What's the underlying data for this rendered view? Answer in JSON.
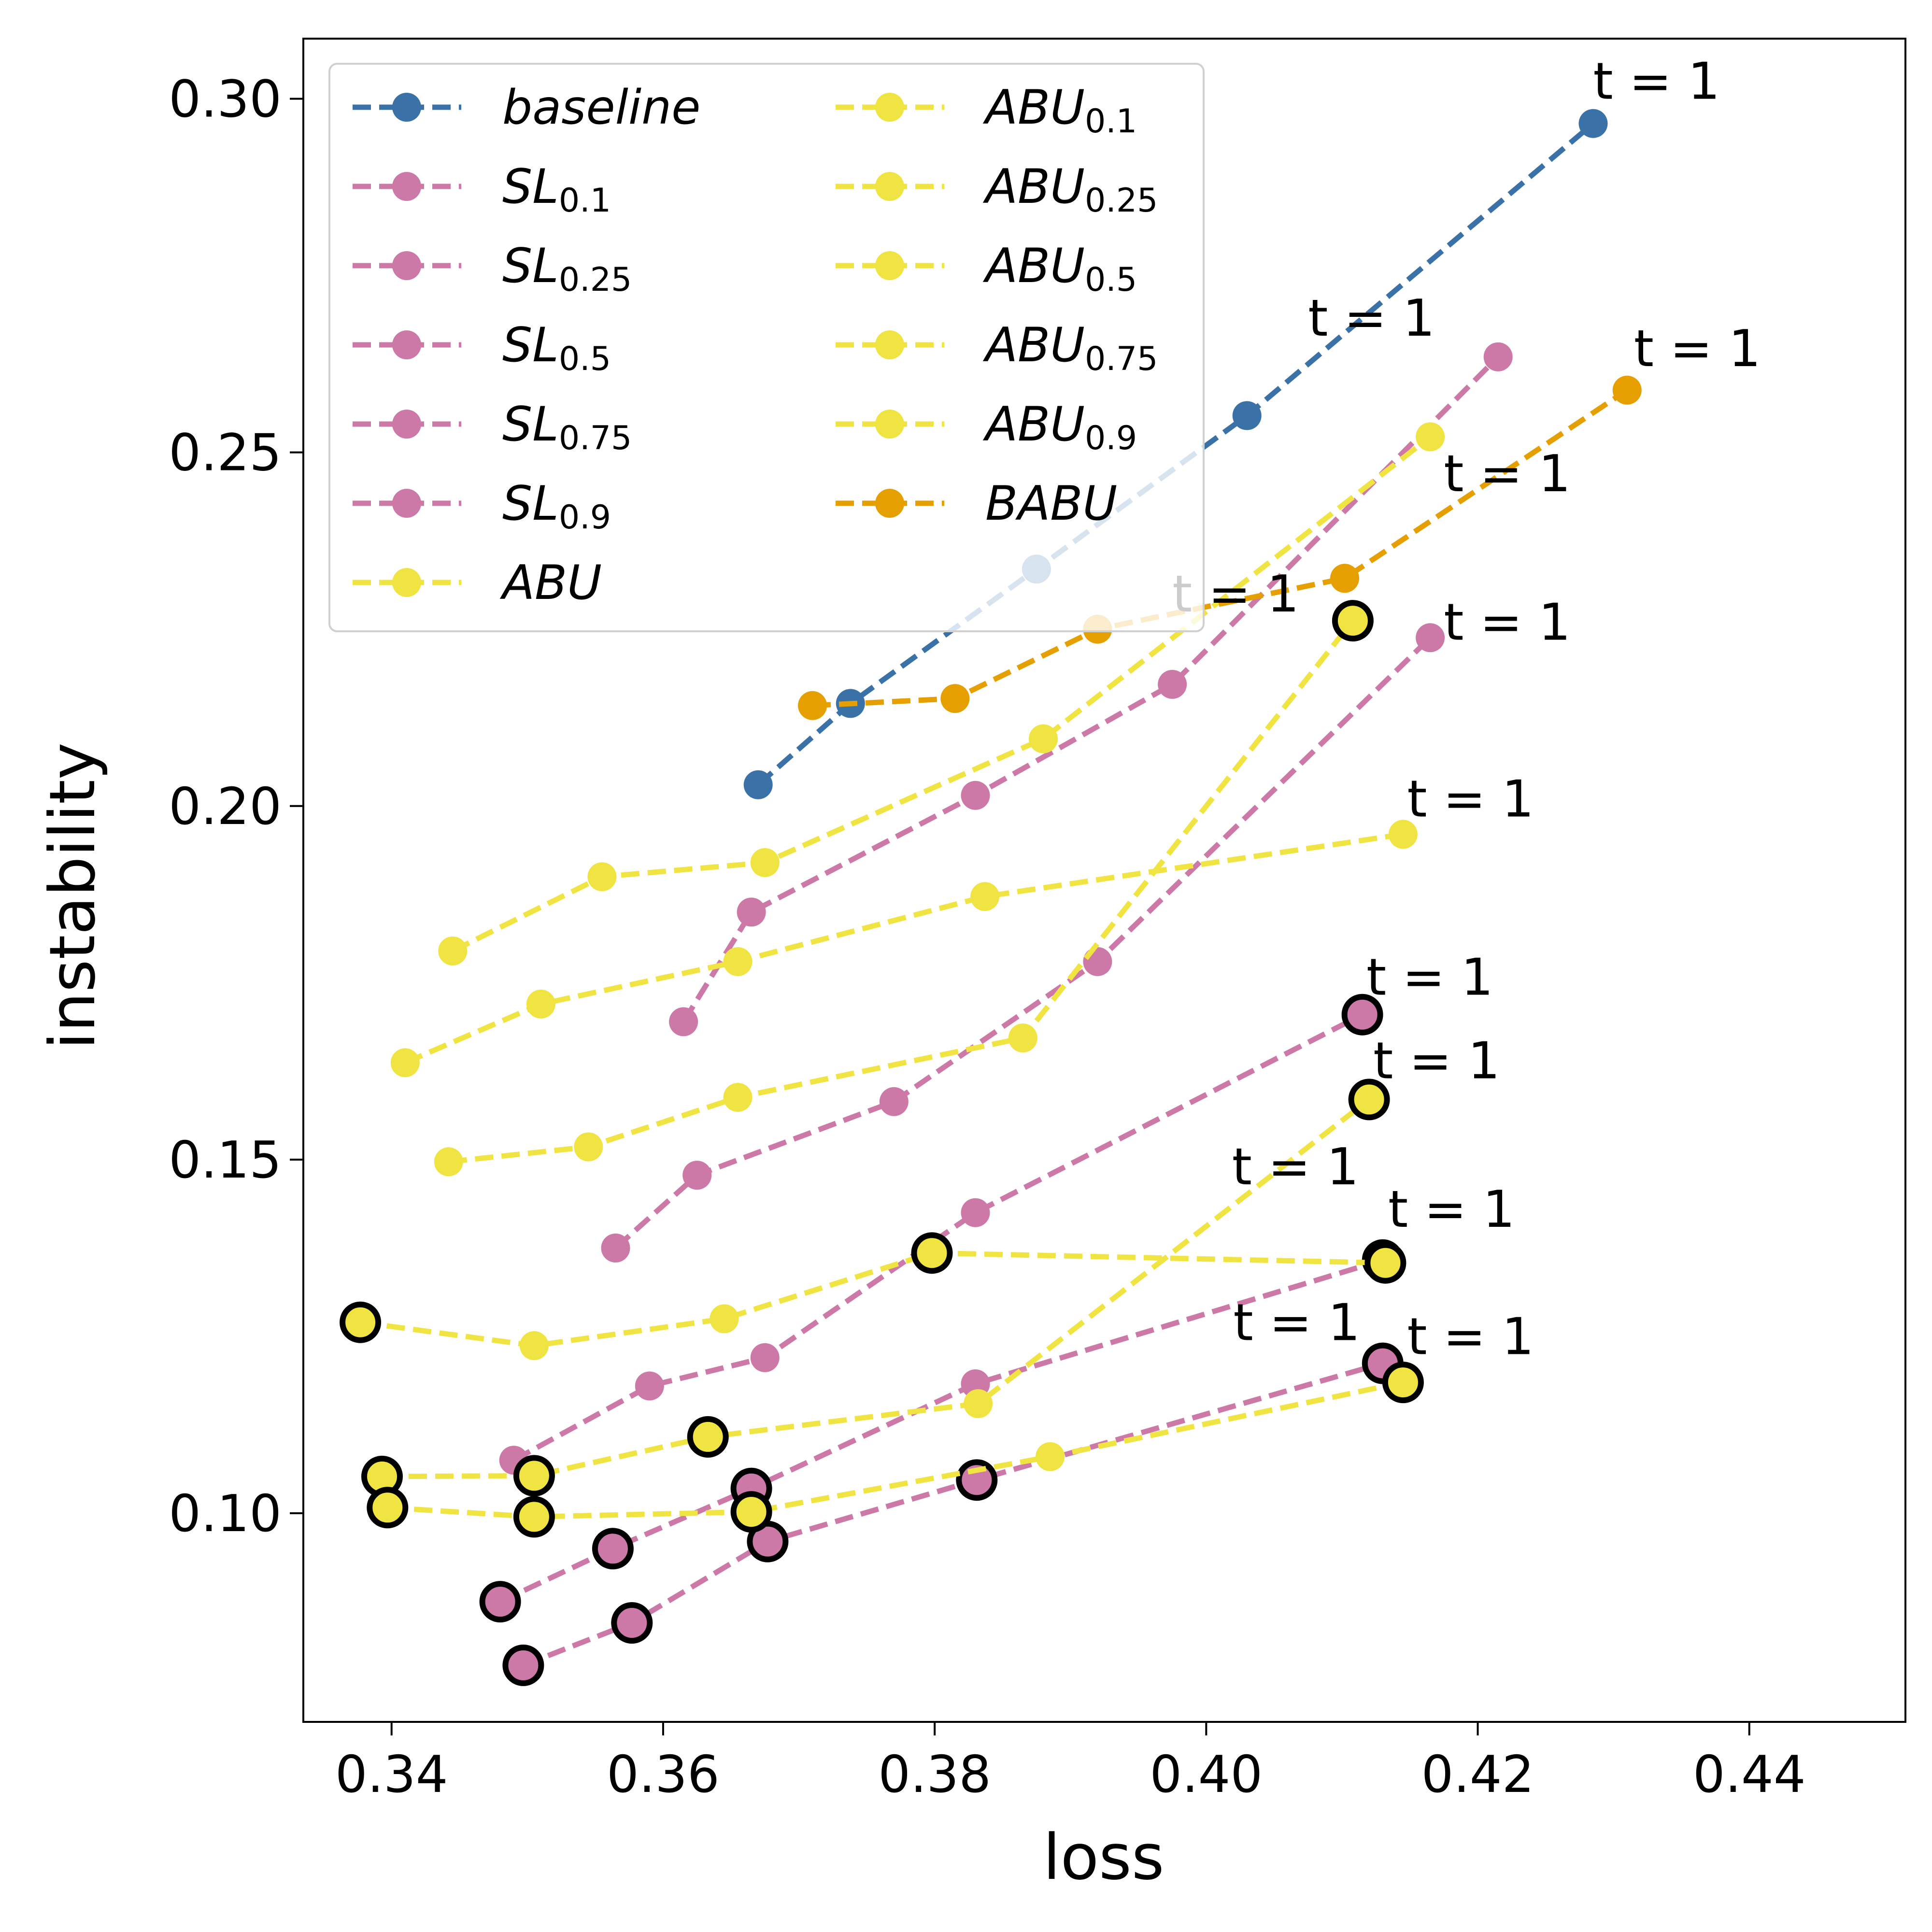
{
  "chart_data": {
    "type": "scatter",
    "xlabel": "loss",
    "ylabel": "instability",
    "xlim": [
      0.3335,
      0.4515
    ],
    "ylim": [
      0.0705,
      0.3085
    ],
    "xticks": [
      0.34,
      0.36,
      0.38,
      0.4,
      0.42,
      0.44
    ],
    "yticks": [
      0.1,
      0.15,
      0.2,
      0.25,
      0.3
    ],
    "xtick_labels": [
      "0.34",
      "0.36",
      "0.38",
      "0.40",
      "0.42",
      "0.44"
    ],
    "ytick_labels": [
      "0.10",
      "0.15",
      "0.20",
      "0.25",
      "0.30"
    ],
    "grid": false,
    "legend_position": "top-left",
    "endpoint_label": "t = 1",
    "colors": {
      "baseline": "#3a72a8",
      "sl": "#cc79a7",
      "abu": "#f0e442",
      "babu": "#e69f00"
    },
    "legend": [
      {
        "base": "baseline",
        "sub": "",
        "color": "#3a72a8"
      },
      {
        "base": "SL",
        "sub": "0.1",
        "color": "#cc79a7"
      },
      {
        "base": "SL",
        "sub": "0.25",
        "color": "#cc79a7"
      },
      {
        "base": "SL",
        "sub": "0.5",
        "color": "#cc79a7"
      },
      {
        "base": "SL",
        "sub": "0.75",
        "color": "#cc79a7"
      },
      {
        "base": "SL",
        "sub": "0.9",
        "color": "#cc79a7"
      },
      {
        "base": "ABU",
        "sub": "",
        "color": "#f0e442"
      },
      {
        "base": "ABU",
        "sub": "0.1",
        "color": "#f0e442"
      },
      {
        "base": "ABU",
        "sub": "0.25",
        "color": "#f0e442"
      },
      {
        "base": "ABU",
        "sub": "0.5",
        "color": "#f0e442"
      },
      {
        "base": "ABU",
        "sub": "0.75",
        "color": "#f0e442"
      },
      {
        "base": "ABU",
        "sub": "0.9",
        "color": "#f0e442"
      },
      {
        "base": "BABU",
        "sub": "",
        "color": "#e69f00"
      }
    ],
    "series": [
      {
        "color": "#3a72a8",
        "points": [
          [
            0.367,
            0.203
          ],
          [
            0.3738,
            0.2145
          ],
          [
            0.3875,
            0.2335
          ],
          [
            0.403,
            0.2552
          ],
          [
            0.4285,
            0.2965
          ]
        ],
        "ring": []
      },
      {
        "color": "#cc79a7",
        "points": [
          [
            0.3615,
            0.1695
          ],
          [
            0.3665,
            0.185
          ],
          [
            0.383,
            0.2015
          ],
          [
            0.3975,
            0.2172
          ],
          [
            0.4215,
            0.2635
          ]
        ],
        "ring": []
      },
      {
        "color": "#cc79a7",
        "points": [
          [
            0.3565,
            0.1375
          ],
          [
            0.3625,
            0.1478
          ],
          [
            0.377,
            0.1582
          ],
          [
            0.392,
            0.178
          ],
          [
            0.4165,
            0.2238
          ]
        ],
        "ring": []
      },
      {
        "color": "#cc79a7",
        "points": [
          [
            0.349,
            0.1075
          ],
          [
            0.359,
            0.118
          ],
          [
            0.3675,
            0.122
          ],
          [
            0.383,
            0.1425
          ],
          [
            0.4115,
            0.1705
          ]
        ],
        "ring": [
          4
        ]
      },
      {
        "color": "#cc79a7",
        "points": [
          [
            0.348,
            0.0875
          ],
          [
            0.3563,
            0.095
          ],
          [
            0.3665,
            0.1035
          ],
          [
            0.383,
            0.1183
          ],
          [
            0.413,
            0.1358
          ]
        ],
        "ring": [
          0,
          1,
          2,
          4
        ]
      },
      {
        "color": "#cc79a7",
        "points": [
          [
            0.3497,
            0.0785
          ],
          [
            0.3577,
            0.0845
          ],
          [
            0.3677,
            0.096
          ],
          [
            0.3831,
            0.1047
          ],
          [
            0.413,
            0.1212
          ]
        ],
        "ring": [
          0,
          1,
          2,
          3,
          4
        ]
      },
      {
        "color": "#f0e442",
        "points": [
          [
            0.3377,
            0.127
          ],
          [
            0.3505,
            0.1237
          ],
          [
            0.3645,
            0.1275
          ],
          [
            0.3798,
            0.1368
          ],
          [
            0.4132,
            0.1354
          ]
        ],
        "ring": [
          0,
          3,
          4
        ]
      },
      {
        "color": "#f0e442",
        "points": [
          [
            0.3445,
            0.1795
          ],
          [
            0.3555,
            0.19
          ],
          [
            0.3675,
            0.192
          ],
          [
            0.388,
            0.2095
          ],
          [
            0.4165,
            0.2522
          ]
        ],
        "ring": []
      },
      {
        "color": "#f0e442",
        "points": [
          [
            0.341,
            0.1637
          ],
          [
            0.351,
            0.172
          ],
          [
            0.3655,
            0.178
          ],
          [
            0.3837,
            0.1872
          ],
          [
            0.4145,
            0.196
          ]
        ],
        "ring": []
      },
      {
        "color": "#f0e442",
        "points": [
          [
            0.3442,
            0.1497
          ],
          [
            0.3545,
            0.1518
          ],
          [
            0.3655,
            0.1588
          ],
          [
            0.3865,
            0.1672
          ],
          [
            0.4108,
            0.2262
          ]
        ],
        "ring": [
          4
        ]
      },
      {
        "color": "#f0e442",
        "points": [
          [
            0.3393,
            0.1052
          ],
          [
            0.3505,
            0.1053
          ],
          [
            0.3633,
            0.1108
          ],
          [
            0.3832,
            0.1155
          ],
          [
            0.412,
            0.1585
          ]
        ],
        "ring": [
          0,
          1,
          2,
          4
        ]
      },
      {
        "color": "#f0e442",
        "points": [
          [
            0.3397,
            0.1008
          ],
          [
            0.3505,
            0.0995
          ],
          [
            0.3665,
            0.1002
          ],
          [
            0.3885,
            0.108
          ],
          [
            0.4145,
            0.1185
          ]
        ],
        "ring": [
          0,
          1,
          2,
          4
        ]
      },
      {
        "color": "#e69f00",
        "points": [
          [
            0.371,
            0.2142
          ],
          [
            0.3815,
            0.2152
          ],
          [
            0.392,
            0.225
          ],
          [
            0.4102,
            0.2322
          ],
          [
            0.431,
            0.2588
          ]
        ],
        "ring": []
      }
    ],
    "t_labels": [
      {
        "x": 0.4285,
        "y": 0.3
      },
      {
        "x": 0.4075,
        "y": 0.2665
      },
      {
        "x": 0.4315,
        "y": 0.2622
      },
      {
        "x": 0.4175,
        "y": 0.2445
      },
      {
        "x": 0.3975,
        "y": 0.2275
      },
      {
        "x": 0.4175,
        "y": 0.2235
      },
      {
        "x": 0.4148,
        "y": 0.1985
      },
      {
        "x": 0.4118,
        "y": 0.1733
      },
      {
        "x": 0.4123,
        "y": 0.1615
      },
      {
        "x": 0.4019,
        "y": 0.1465
      },
      {
        "x": 0.4134,
        "y": 0.1405
      },
      {
        "x": 0.402,
        "y": 0.1245
      },
      {
        "x": 0.4148,
        "y": 0.1225
      }
    ]
  }
}
